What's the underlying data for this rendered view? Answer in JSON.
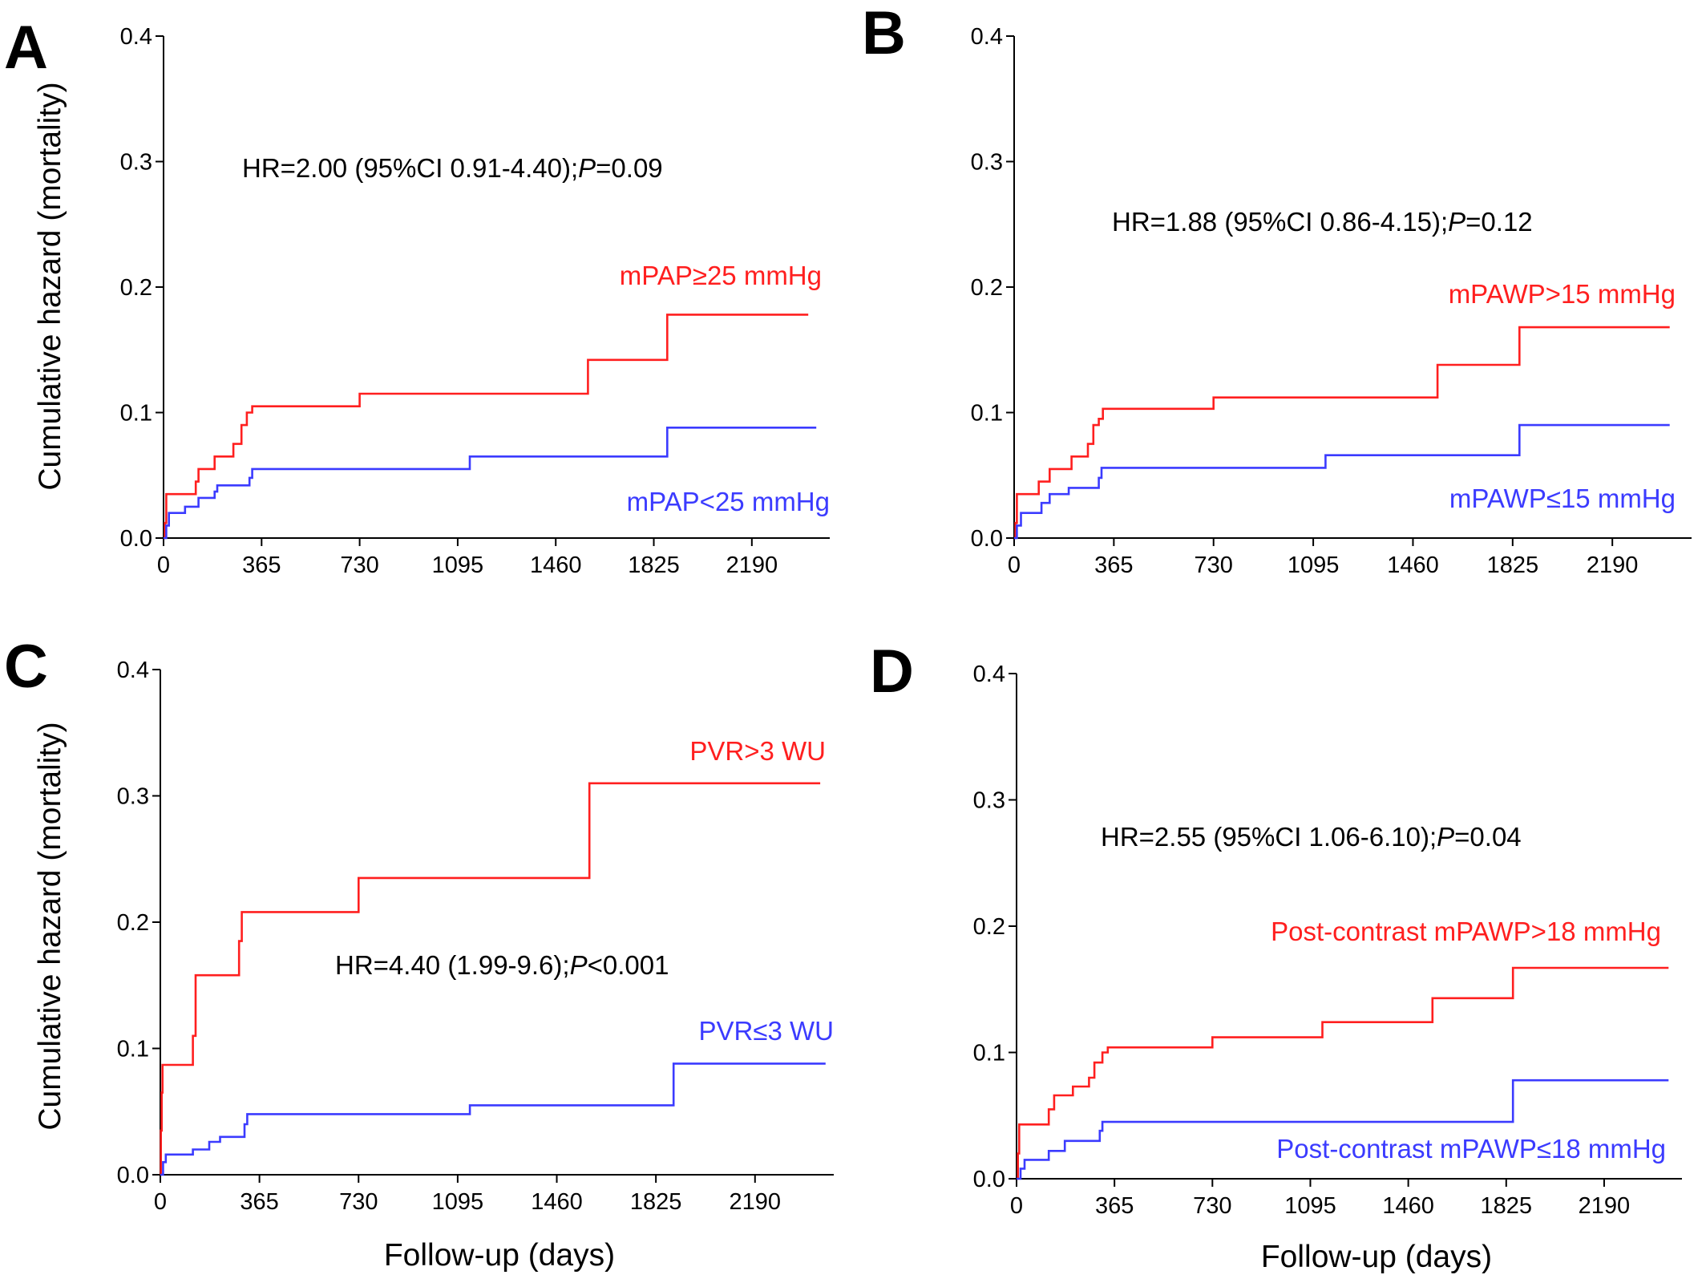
{
  "figure": {
    "ylabel": "Cumulative hazard (mortality)",
    "xlabel": "Follow-up (days)",
    "colors": {
      "high": "#ff1f1f",
      "low": "#3b3bff",
      "axis": "#000000"
    }
  },
  "chart_data": [
    {
      "panel": "A",
      "type": "line",
      "step": true,
      "xlabel": "",
      "ylabel": "Cumulative hazard (mortality)",
      "xlim": [
        0,
        2480
      ],
      "ylim": [
        0,
        0.4
      ],
      "x_ticks": [
        0,
        365,
        730,
        1095,
        1460,
        1825,
        2190
      ],
      "x_tick_labels": [
        "0",
        "365",
        "730",
        "1095",
        "1460",
        "1825",
        "2190"
      ],
      "y_ticks": [
        0,
        0.1,
        0.2,
        0.3,
        0.4
      ],
      "y_tick_labels": [
        "0.0",
        "0.1",
        "0.2",
        "0.3",
        "0.4"
      ],
      "annotation": {
        "prefix": "HR=2.00 (95%CI 0.91-4.40);",
        "italic": "P",
        "suffix": "=0.09"
      },
      "series": [
        {
          "name": "mPAP≥25 mmHg",
          "color": "#ff1f1f",
          "points": [
            [
              0,
              0
            ],
            [
              5,
              0.012
            ],
            [
              10,
              0.035
            ],
            [
              120,
              0.045
            ],
            [
              130,
              0.055
            ],
            [
              185,
              0.055
            ],
            [
              190,
              0.065
            ],
            [
              250,
              0.065
            ],
            [
              260,
              0.075
            ],
            [
              285,
              0.075
            ],
            [
              290,
              0.09
            ],
            [
              305,
              0.09
            ],
            [
              310,
              0.1
            ],
            [
              330,
              0.105
            ],
            [
              730,
              0.115
            ],
            [
              1580,
              0.142
            ],
            [
              1875,
              0.178
            ],
            [
              2400,
              0.178
            ]
          ]
        },
        {
          "name": "mPAP<25 mmHg",
          "color": "#3b3bff",
          "points": [
            [
              0,
              0
            ],
            [
              10,
              0.01
            ],
            [
              20,
              0.02
            ],
            [
              80,
              0.025
            ],
            [
              130,
              0.032
            ],
            [
              190,
              0.037
            ],
            [
              200,
              0.042
            ],
            [
              320,
              0.048
            ],
            [
              330,
              0.055
            ],
            [
              1140,
              0.065
            ],
            [
              1875,
              0.088
            ],
            [
              2430,
              0.088
            ]
          ]
        }
      ]
    },
    {
      "panel": "B",
      "type": "line",
      "step": true,
      "xlabel": "",
      "ylabel": "",
      "xlim": [
        0,
        2480
      ],
      "ylim": [
        0,
        0.4
      ],
      "x_ticks": [
        0,
        365,
        730,
        1095,
        1460,
        1825,
        2190
      ],
      "x_tick_labels": [
        "0",
        "365",
        "730",
        "1095",
        "1460",
        "1825",
        "2190"
      ],
      "y_ticks": [
        0,
        0.1,
        0.2,
        0.3,
        0.4
      ],
      "y_tick_labels": [
        "0.0",
        "0.1",
        "0.2",
        "0.3",
        "0.4"
      ],
      "annotation": {
        "prefix": "HR=1.88 (95%CI 0.86-4.15);",
        "italic": "P",
        "suffix": "=0.12"
      },
      "series": [
        {
          "name": "mPAWP>15 mmHg",
          "color": "#ff1f1f",
          "points": [
            [
              0,
              0
            ],
            [
              5,
              0.012
            ],
            [
              10,
              0.035
            ],
            [
              90,
              0.045
            ],
            [
              130,
              0.055
            ],
            [
              200,
              0.055
            ],
            [
              210,
              0.065
            ],
            [
              250,
              0.065
            ],
            [
              270,
              0.075
            ],
            [
              290,
              0.09
            ],
            [
              310,
              0.095
            ],
            [
              325,
              0.103
            ],
            [
              730,
              0.112
            ],
            [
              1550,
              0.138
            ],
            [
              1850,
              0.168
            ],
            [
              2400,
              0.168
            ]
          ]
        },
        {
          "name": "mPAWP≤15 mmHg",
          "color": "#3b3bff",
          "points": [
            [
              0,
              0
            ],
            [
              10,
              0.01
            ],
            [
              25,
              0.02
            ],
            [
              100,
              0.028
            ],
            [
              130,
              0.035
            ],
            [
              200,
              0.04
            ],
            [
              310,
              0.048
            ],
            [
              320,
              0.056
            ],
            [
              1140,
              0.066
            ],
            [
              1850,
              0.09
            ],
            [
              2400,
              0.09
            ]
          ]
        }
      ]
    },
    {
      "panel": "C",
      "type": "line",
      "step": true,
      "xlabel": "Follow-up (days)",
      "ylabel": "Cumulative hazard (mortality)",
      "xlim": [
        0,
        2480
      ],
      "ylim": [
        0,
        0.4
      ],
      "x_ticks": [
        0,
        365,
        730,
        1095,
        1460,
        1825,
        2190
      ],
      "x_tick_labels": [
        "0",
        "365",
        "730",
        "1095",
        "1460",
        "1825",
        "2190"
      ],
      "y_ticks": [
        0,
        0.1,
        0.2,
        0.3,
        0.4
      ],
      "y_tick_labels": [
        "0.0",
        "0.1",
        "0.2",
        "0.3",
        "0.4"
      ],
      "annotation": {
        "prefix": "HR=4.40 (1.99-9.6);",
        "italic": "P",
        "suffix": "<0.001"
      },
      "series": [
        {
          "name": "PVR>3 WU",
          "color": "#ff1f1f",
          "points": [
            [
              0,
              0
            ],
            [
              2,
              0.035
            ],
            [
              5,
              0.065
            ],
            [
              8,
              0.087
            ],
            [
              120,
              0.11
            ],
            [
              130,
              0.158
            ],
            [
              290,
              0.185
            ],
            [
              300,
              0.208
            ],
            [
              730,
              0.235
            ],
            [
              1580,
              0.31
            ],
            [
              2430,
              0.31
            ]
          ]
        },
        {
          "name": "PVR≤3 WU",
          "color": "#3b3bff",
          "points": [
            [
              0,
              0
            ],
            [
              10,
              0.01
            ],
            [
              20,
              0.016
            ],
            [
              120,
              0.02
            ],
            [
              180,
              0.026
            ],
            [
              220,
              0.03
            ],
            [
              310,
              0.04
            ],
            [
              320,
              0.048
            ],
            [
              1140,
              0.055
            ],
            [
              1890,
              0.088
            ],
            [
              2450,
              0.088
            ]
          ]
        }
      ]
    },
    {
      "panel": "D",
      "type": "line",
      "step": true,
      "xlabel": "Follow-up (days)",
      "ylabel": "",
      "xlim": [
        0,
        2480
      ],
      "ylim": [
        0,
        0.4
      ],
      "x_ticks": [
        0,
        365,
        730,
        1095,
        1460,
        1825,
        2190
      ],
      "x_tick_labels": [
        "0",
        "365",
        "730",
        "1095",
        "1460",
        "1825",
        "2190"
      ],
      "y_ticks": [
        0,
        0.1,
        0.2,
        0.3,
        0.4
      ],
      "y_tick_labels": [
        "0.0",
        "0.1",
        "0.2",
        "0.3",
        "0.4"
      ],
      "annotation": {
        "prefix": "HR=2.55 (95%CI 1.06-6.10);",
        "italic": "P",
        "suffix": "=0.04"
      },
      "series": [
        {
          "name": "Post-contrast mPAWP>18 mmHg",
          "color": "#ff1f1f",
          "points": [
            [
              0,
              0
            ],
            [
              5,
              0.02
            ],
            [
              10,
              0.043
            ],
            [
              120,
              0.055
            ],
            [
              140,
              0.066
            ],
            [
              210,
              0.073
            ],
            [
              270,
              0.08
            ],
            [
              290,
              0.092
            ],
            [
              320,
              0.1
            ],
            [
              340,
              0.104
            ],
            [
              730,
              0.112
            ],
            [
              1140,
              0.124
            ],
            [
              1550,
              0.143
            ],
            [
              1850,
              0.167
            ],
            [
              2430,
              0.167
            ]
          ]
        },
        {
          "name": "Post-contrast mPAWP≤18 mmHg",
          "color": "#3b3bff",
          "points": [
            [
              0,
              0
            ],
            [
              15,
              0.008
            ],
            [
              30,
              0.015
            ],
            [
              120,
              0.022
            ],
            [
              180,
              0.03
            ],
            [
              310,
              0.038
            ],
            [
              320,
              0.045
            ],
            [
              1850,
              0.078
            ],
            [
              2430,
              0.078
            ]
          ]
        }
      ]
    }
  ]
}
